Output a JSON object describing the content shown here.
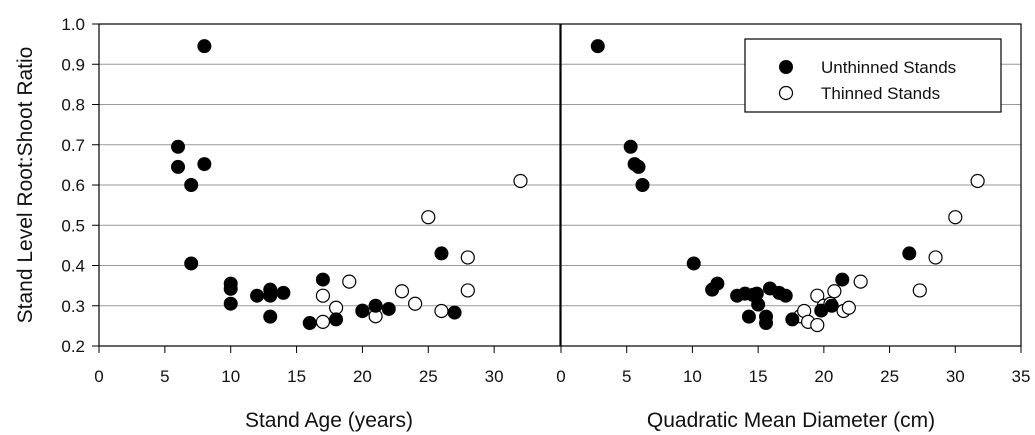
{
  "chart_data": [
    {
      "type": "scatter",
      "xlabel": "Stand Age (years)",
      "ylabel": "Stand Level Root:Shoot Ratio",
      "xlim": [
        0,
        35
      ],
      "ylim": [
        0.2,
        1.0
      ],
      "xticks": [
        "0",
        "5",
        "10",
        "15",
        "20",
        "25",
        "30"
      ],
      "yticks": [
        "0.2",
        "0.3",
        "0.4",
        "0.5",
        "0.6",
        "0.7",
        "0.8",
        "0.9",
        "1.0"
      ],
      "grid": "horizontal",
      "series": [
        {
          "name": "Unthinned Stands",
          "marker": "filled-circle",
          "color": "#000000",
          "points": [
            [
              8,
              0.945
            ],
            [
              6,
              0.695
            ],
            [
              6,
              0.645
            ],
            [
              8,
              0.652
            ],
            [
              7,
              0.6
            ],
            [
              7,
              0.405
            ],
            [
              10,
              0.355
            ],
            [
              10,
              0.342
            ],
            [
              10,
              0.305
            ],
            [
              12,
              0.325
            ],
            [
              13,
              0.34
            ],
            [
              13,
              0.325
            ],
            [
              14,
              0.332
            ],
            [
              13,
              0.273
            ],
            [
              16,
              0.257
            ],
            [
              17,
              0.365
            ],
            [
              18,
              0.266
            ],
            [
              20,
              0.288
            ],
            [
              21,
              0.3
            ],
            [
              22,
              0.292
            ],
            [
              26,
              0.43
            ],
            [
              27,
              0.283
            ]
          ]
        },
        {
          "name": "Thinned Stands",
          "marker": "open-circle",
          "color": "#000000",
          "points": [
            [
              17,
              0.325
            ],
            [
              17,
              0.26
            ],
            [
              18,
              0.295
            ],
            [
              19,
              0.36
            ],
            [
              20,
              0.287
            ],
            [
              21,
              0.274
            ],
            [
              23,
              0.336
            ],
            [
              24,
              0.305
            ],
            [
              25,
              0.52
            ],
            [
              26,
              0.287
            ],
            [
              28,
              0.42
            ],
            [
              28,
              0.338
            ],
            [
              32,
              0.61
            ]
          ]
        }
      ]
    },
    {
      "type": "scatter",
      "xlabel": "Quadratic Mean Diameter (cm)",
      "ylabel": "",
      "xlim": [
        0,
        35
      ],
      "ylim": [
        0.2,
        1.0
      ],
      "xticks": [
        "0",
        "5",
        "10",
        "15",
        "20",
        "25",
        "30",
        "35"
      ],
      "grid": "horizontal",
      "legend": "top-right",
      "series": [
        {
          "name": "Unthinned Stands",
          "marker": "filled-circle",
          "color": "#000000",
          "points": [
            [
              2.8,
              0.945
            ],
            [
              5.3,
              0.695
            ],
            [
              5.6,
              0.652
            ],
            [
              5.9,
              0.645
            ],
            [
              6.2,
              0.6
            ],
            [
              10.1,
              0.405
            ],
            [
              11.9,
              0.355
            ],
            [
              11.5,
              0.34
            ],
            [
              13.4,
              0.325
            ],
            [
              14,
              0.33
            ],
            [
              14.6,
              0.327
            ],
            [
              14.9,
              0.33
            ],
            [
              15.9,
              0.343
            ],
            [
              16.6,
              0.332
            ],
            [
              17.1,
              0.325
            ],
            [
              14.3,
              0.273
            ],
            [
              15,
              0.303
            ],
            [
              15.6,
              0.273
            ],
            [
              15.6,
              0.257
            ],
            [
              17.6,
              0.266
            ],
            [
              19.8,
              0.288
            ],
            [
              20.6,
              0.3
            ],
            [
              21.4,
              0.365
            ],
            [
              26.5,
              0.43
            ]
          ]
        },
        {
          "name": "Thinned Stands",
          "marker": "open-circle",
          "color": "#000000",
          "points": [
            [
              18.2,
              0.274
            ],
            [
              18.5,
              0.287
            ],
            [
              18.8,
              0.26
            ],
            [
              19.5,
              0.325
            ],
            [
              19.5,
              0.252
            ],
            [
              20,
              0.3
            ],
            [
              20.5,
              0.305
            ],
            [
              20.8,
              0.336
            ],
            [
              21.5,
              0.287
            ],
            [
              21.9,
              0.295
            ],
            [
              22.8,
              0.36
            ],
            [
              27.3,
              0.338
            ],
            [
              28.5,
              0.42
            ],
            [
              30,
              0.52
            ],
            [
              31.7,
              0.61
            ]
          ]
        }
      ]
    }
  ]
}
